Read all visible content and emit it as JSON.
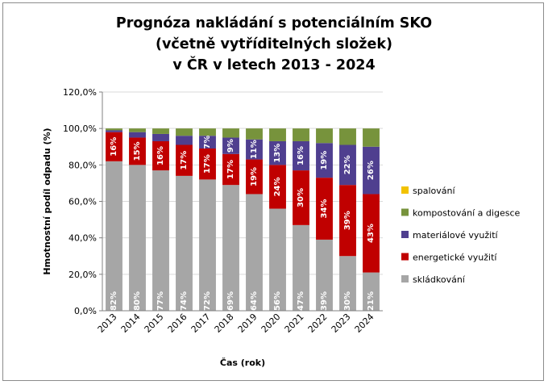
{
  "chart_data": {
    "type": "bar",
    "stacked": true,
    "title_lines": [
      "Prognóza nakládání s potenciálním SKO",
      "(včetně vytříditelných složek)",
      "v ČR v letech 2013 - 2024"
    ],
    "xlabel": "Čas (rok)",
    "ylabel": "Hmotnostní podíl odpadu (%)",
    "ylim": [
      0,
      1.2
    ],
    "yticks": [
      "0,0%",
      "20,0%",
      "40,0%",
      "60,0%",
      "80,0%",
      "100,0%",
      "120,0%"
    ],
    "grid": true,
    "legend_position": "right",
    "categories": [
      "2013",
      "2014",
      "2015",
      "2016",
      "2017",
      "2018",
      "2019",
      "2020",
      "2021",
      "2022",
      "2023",
      "2024"
    ],
    "series": [
      {
        "name": "skládkování",
        "color": "#a6a6a6",
        "values": [
          0.82,
          0.8,
          0.77,
          0.74,
          0.72,
          0.69,
          0.64,
          0.56,
          0.47,
          0.39,
          0.3,
          0.21
        ],
        "labels": [
          "82%",
          "80%",
          "77%",
          "74%",
          "72%",
          "69%",
          "64%",
          "56%",
          "47%",
          "39%",
          "30%",
          "21%"
        ]
      },
      {
        "name": "energetické využití",
        "color": "#c00000",
        "values": [
          0.16,
          0.15,
          0.16,
          0.17,
          0.17,
          0.17,
          0.19,
          0.24,
          0.3,
          0.34,
          0.39,
          0.43
        ],
        "labels": [
          "16%",
          "15%",
          "16%",
          "17%",
          "17%",
          "17%",
          "19%",
          "24%",
          "30%",
          "34%",
          "39%",
          "43%"
        ]
      },
      {
        "name": "materiálové využití",
        "color": "#4f3f8f",
        "values": [
          0.01,
          0.03,
          0.04,
          0.05,
          0.07,
          0.09,
          0.11,
          0.13,
          0.16,
          0.19,
          0.22,
          0.26
        ],
        "labels": [
          "",
          "",
          "",
          "",
          "7%",
          "9%",
          "11%",
          "13%",
          "16%",
          "19%",
          "22%",
          "26%"
        ]
      },
      {
        "name": "kompostování a digesce",
        "color": "#77933c",
        "values": [
          0.01,
          0.02,
          0.03,
          0.04,
          0.04,
          0.05,
          0.06,
          0.07,
          0.07,
          0.08,
          0.09,
          0.1
        ],
        "labels": [
          "",
          "",
          "",
          "",
          "",
          "",
          "",
          "",
          "",
          "",
          "",
          ""
        ]
      },
      {
        "name": "spalování",
        "color": "#f2c200",
        "values": [
          0,
          0,
          0,
          0,
          0,
          0,
          0,
          0,
          0,
          0,
          0,
          0
        ],
        "labels": [
          "",
          "",
          "",
          "",
          "",
          "",
          "",
          "",
          "",
          "",
          "",
          ""
        ]
      }
    ]
  }
}
